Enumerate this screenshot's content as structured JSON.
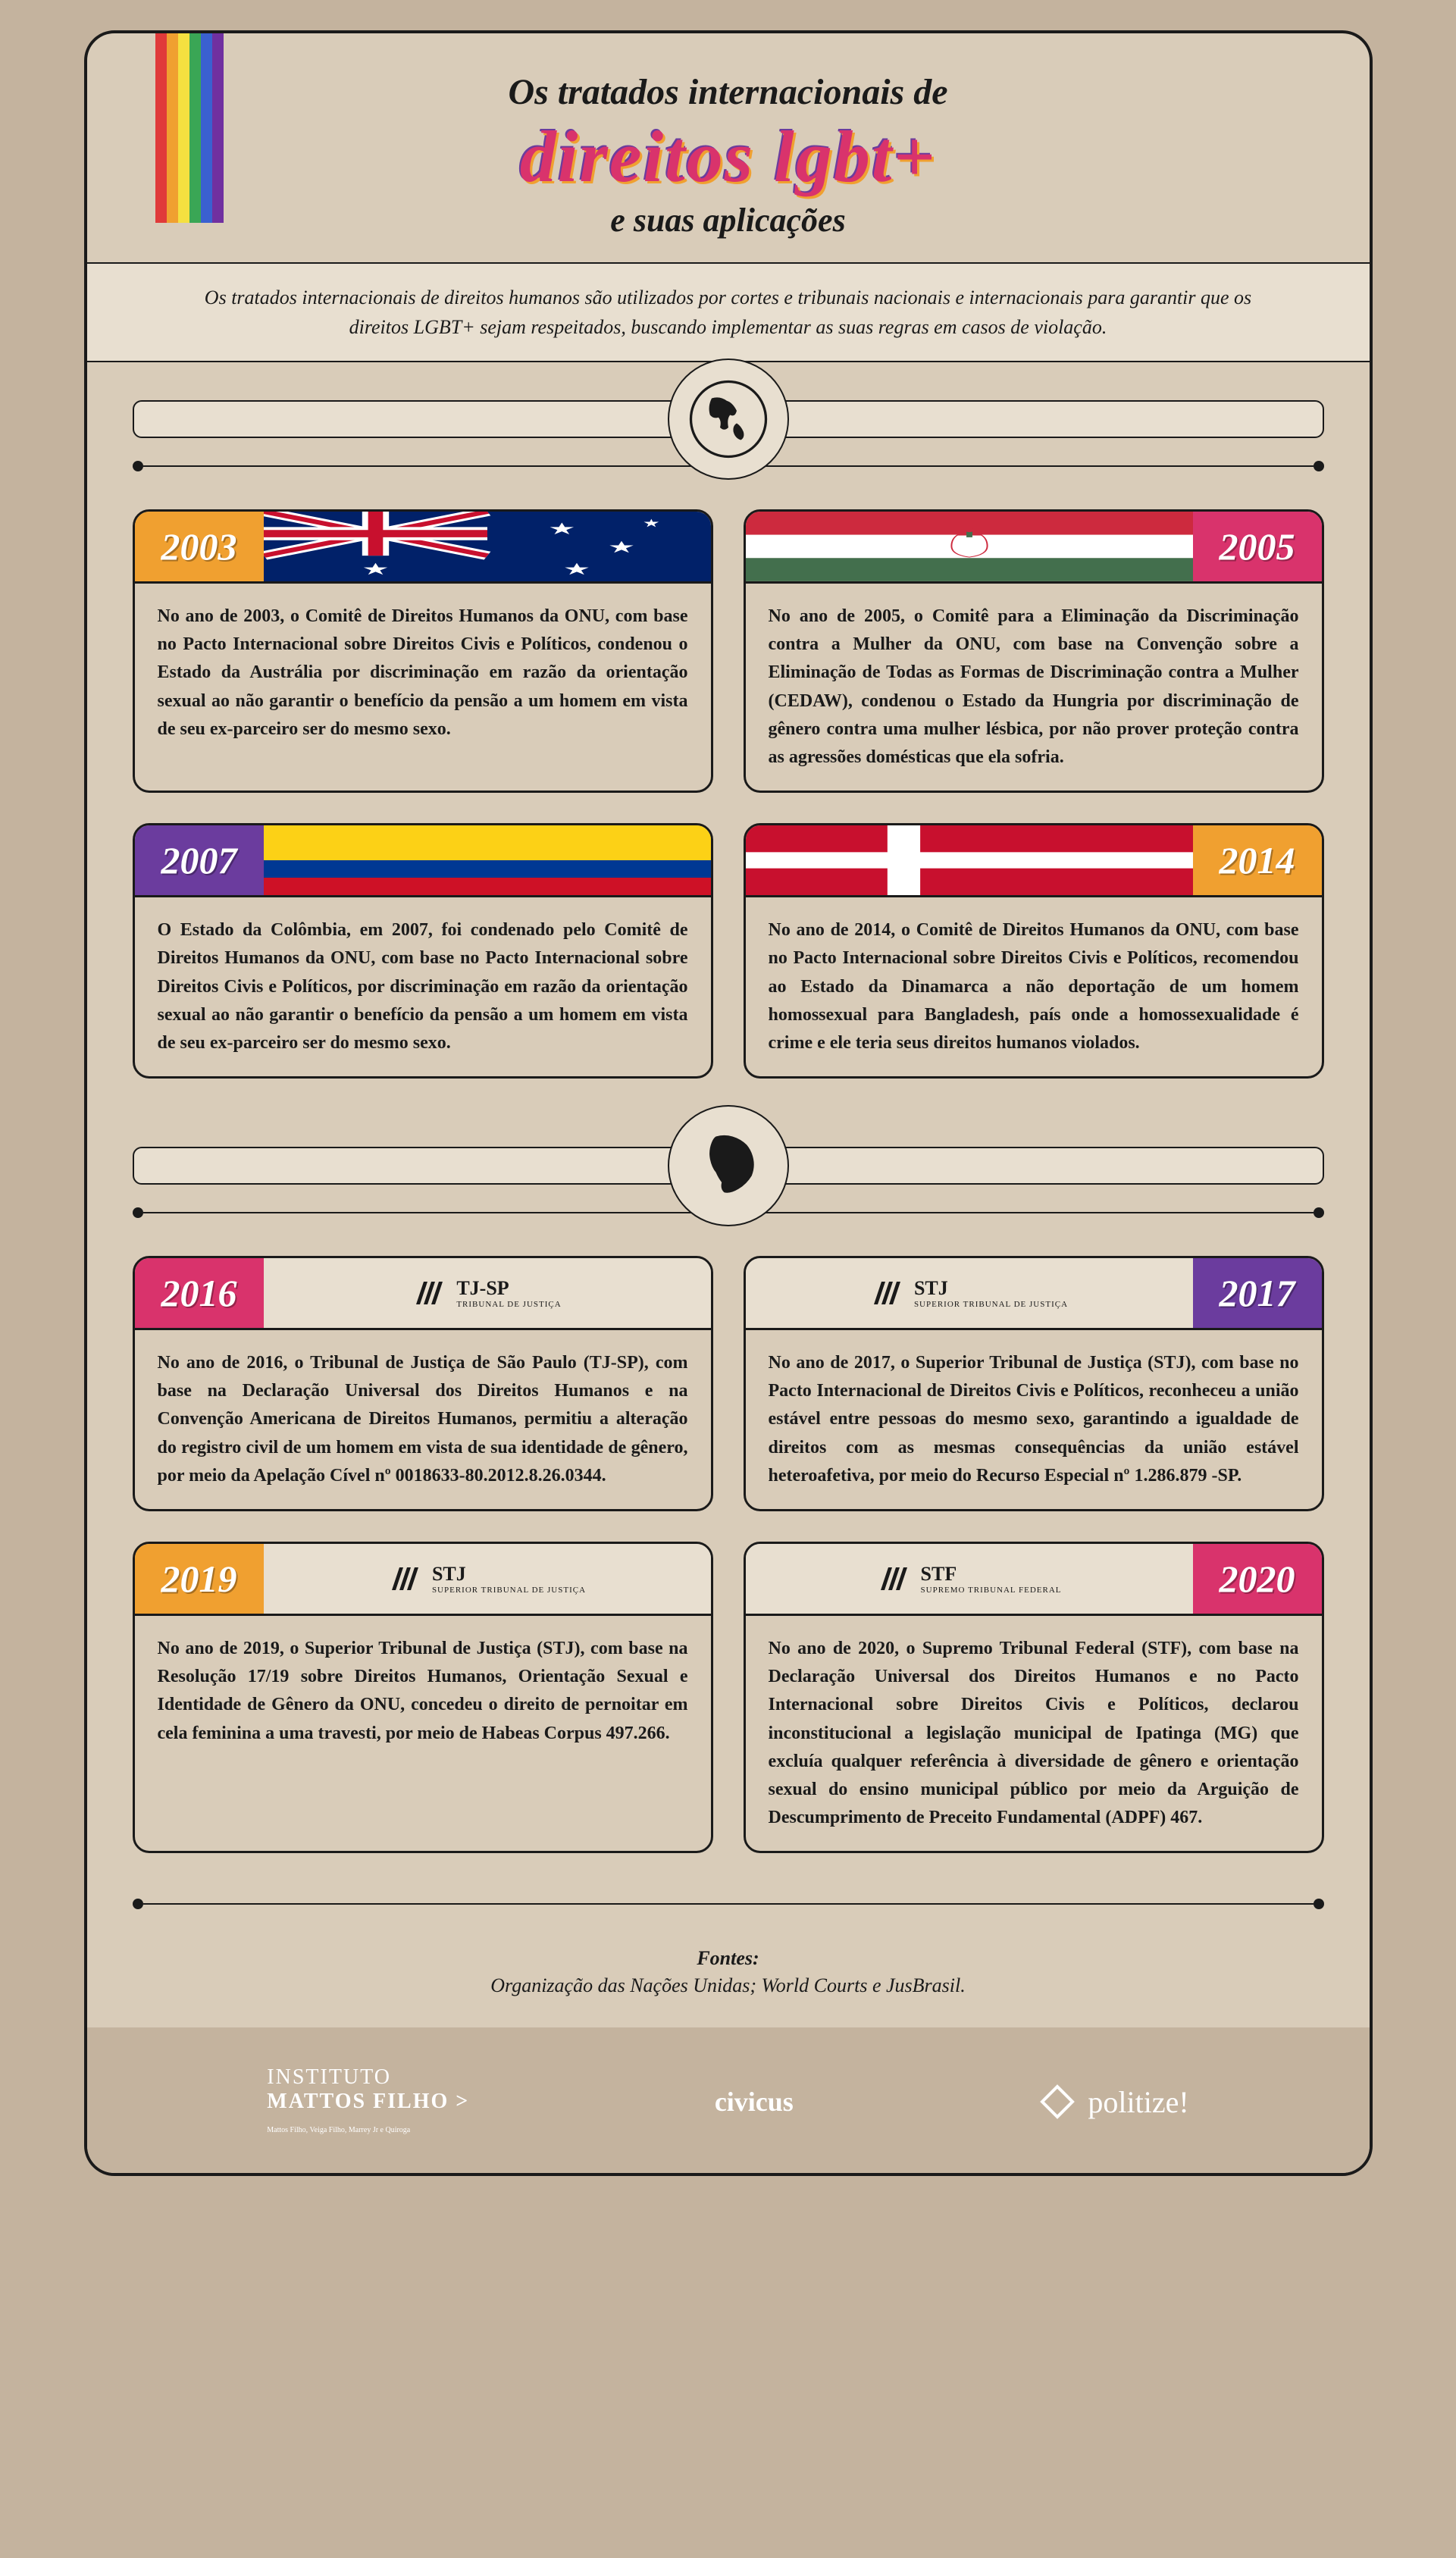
{
  "header": {
    "line1": "Os tratados internacionais de",
    "line2": "direitos lgbt+",
    "line3": "e suas aplicações",
    "intro": "Os tratados internacionais de direitos humanos são utilizados por cortes e tribunais nacionais e internacionais para garantir que os direitos LGBT+ sejam respeitados, buscando implementar as suas regras em casos de violação."
  },
  "rainbow": [
    "#e03a3a",
    "#f0a030",
    "#f5e040",
    "#3aa655",
    "#3a60d0",
    "#7030a0"
  ],
  "year_colors": {
    "orange": "#f0a030",
    "pink": "#d9336c",
    "purple": "#6b3c9e"
  },
  "world_cards": [
    {
      "year": "2003",
      "year_color": "#f0a030",
      "side": "left",
      "flag": "australia",
      "text": "No ano de 2003, o Comitê de Direitos Humanos da ONU, com base no Pacto Internacional sobre Direitos Civis e Políticos, condenou o Estado da Austrália por discriminação em razão da orientação sexual ao não garantir o benefício da pensão a um homem em vista de seu ex-parceiro ser do mesmo sexo."
    },
    {
      "year": "2005",
      "year_color": "#d9336c",
      "side": "right",
      "flag": "hungary",
      "text": "No ano de 2005, o Comitê para a Eliminação da Discriminação contra a Mulher da ONU, com base na Convenção sobre a Eliminação de Todas as Formas de Discriminação contra a Mulher (CEDAW), condenou o Estado da Hungria por discriminação de gênero contra uma mulher lésbica, por não prover proteção contra as agressões domésticas que ela sofria."
    },
    {
      "year": "2007",
      "year_color": "#6b3c9e",
      "side": "left",
      "flag": "colombia",
      "text": "O Estado da Colômbia, em 2007, foi condenado pelo Comitê de Direitos Humanos da ONU, com base no Pacto Internacional sobre Direitos Civis e Políticos, por discriminação em razão da orientação sexual ao não garantir o benefício da pensão a um homem em vista de seu ex-parceiro ser do mesmo sexo."
    },
    {
      "year": "2014",
      "year_color": "#f0a030",
      "side": "right",
      "flag": "denmark",
      "text": "No ano de 2014, o Comitê de Direitos Humanos da ONU, com base no Pacto Internacional sobre Direitos Civis e Políticos, recomendou ao Estado da Dinamarca a não deportação de um homem homossexual para Bangladesh, país onde a homossexualidade é crime e ele teria seus direitos humanos violados."
    }
  ],
  "brazil_cards": [
    {
      "year": "2016",
      "year_color": "#d9336c",
      "side": "left",
      "court": "TJ-SP",
      "court_sub": "TRIBUNAL DE JUSTIÇA",
      "text": "No ano de 2016, o Tribunal de Justiça de São Paulo (TJ-SP), com base na Declaração Universal dos Direitos Humanos e na Convenção Americana de Direitos Humanos, permitiu a alteração do registro civil de um homem em vista de sua identidade de gênero, por meio da Apelação Cível nº 0018633-80.2012.8.26.0344."
    },
    {
      "year": "2017",
      "year_color": "#6b3c9e",
      "side": "right",
      "court": "STJ",
      "court_sub": "SUPERIOR TRIBUNAL DE JUSTIÇA",
      "text": "No ano de 2017, o Superior Tribunal de Justiça (STJ), com base no Pacto Internacional de Direitos Civis e Políticos, reconheceu a união estável entre pessoas do mesmo sexo, garantindo a igualdade de direitos com as mesmas consequências da união estável heteroafetiva, por meio do Recurso Especial nº 1.286.879 -SP."
    },
    {
      "year": "2019",
      "year_color": "#f0a030",
      "side": "left",
      "court": "STJ",
      "court_sub": "SUPERIOR TRIBUNAL DE JUSTIÇA",
      "text": "No ano de 2019, o Superior Tribunal de Justiça (STJ), com base na Resolução 17/19 sobre Direitos Humanos, Orientação Sexual e Identidade de Gênero da ONU, concedeu o direito de pernoitar em cela feminina a uma travesti, por meio de Habeas Corpus 497.266."
    },
    {
      "year": "2020",
      "year_color": "#d9336c",
      "side": "right",
      "court": "STF",
      "court_sub": "SUPREMO TRIBUNAL FEDERAL",
      "text": "No ano de 2020, o Supremo Tribunal Federal (STF), com base na Declaração Universal dos Direitos Humanos e no Pacto Internacional sobre Direitos Civis e Políticos, declarou inconstitucional a legislação municipal de Ipatinga (MG) que excluía qualquer referência à diversidade de gênero e orientação sexual do ensino municipal público por meio da Arguição de Descumprimento de Preceito Fundamental (ADPF) 467."
    }
  ],
  "sources": {
    "title": "Fontes:",
    "text": "Organização das Nações Unidas; World Courts e JusBrasil."
  },
  "footer": {
    "logo1_line1": "INSTITUTO",
    "logo1_line2": "MATTOS FILHO >",
    "logo1_sub": "Mattos Filho, Veiga Filho, Marrey Jr e Quiroga",
    "logo2": "civicus",
    "logo3": "politize!"
  }
}
